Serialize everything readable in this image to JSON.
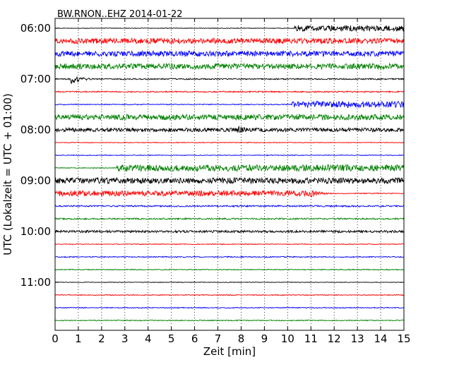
{
  "chart_data": {
    "type": "seismogram",
    "title": "BW.RNON..EHZ 2014-01-22",
    "xlabel": "Zeit  [min]",
    "ylabel": "UTC (Lokalzeit = UTC + 01:00)",
    "xlim": [
      0,
      15
    ],
    "x_ticks": [
      "0",
      "1",
      "2",
      "3",
      "4",
      "5",
      "6",
      "7",
      "8",
      "9",
      "10",
      "11",
      "12",
      "13",
      "14",
      "15"
    ],
    "y_tick_labels": [
      "06:00",
      "07:00",
      "08:00",
      "09:00",
      "10:00",
      "11:00"
    ],
    "vertical_grid": "dotted",
    "trace_colors": [
      "#000000",
      "#ff0000",
      "#0000ff",
      "#008000"
    ],
    "trace_interval_min": 15,
    "traces": [
      {
        "start": "06:00",
        "color": "#000000",
        "base_amplitude": 0.05,
        "burst": {
          "from_min": 10.3,
          "to_min": 15,
          "amplitude": 0.45
        }
      },
      {
        "start": "06:15",
        "color": "#ff0000",
        "base_amplitude": 0.42
      },
      {
        "start": "06:30",
        "color": "#0000ff",
        "base_amplitude": 0.42
      },
      {
        "start": "06:45",
        "color": "#008000",
        "base_amplitude": 0.42
      },
      {
        "start": "07:00",
        "color": "#000000",
        "base_amplitude": 0.1,
        "event": {
          "at_min": 0.7,
          "amplitude": 0.7,
          "decay_min": 0.5
        }
      },
      {
        "start": "07:15",
        "color": "#ff0000",
        "base_amplitude": 0.1
      },
      {
        "start": "07:30",
        "color": "#0000ff",
        "base_amplitude": 0.07,
        "burst": {
          "from_min": 10.2,
          "to_min": 15,
          "amplitude": 0.48
        }
      },
      {
        "start": "07:45",
        "color": "#008000",
        "base_amplitude": 0.42
      },
      {
        "start": "08:00",
        "color": "#000000",
        "base_amplitude": 0.3,
        "event": {
          "at_min": 7.9,
          "amplitude": 0.6,
          "decay_min": 0.6
        }
      },
      {
        "start": "08:15",
        "color": "#ff0000",
        "base_amplitude": 0.06
      },
      {
        "start": "08:30",
        "color": "#0000ff",
        "base_amplitude": 0.06
      },
      {
        "start": "08:45",
        "color": "#008000",
        "base_amplitude": 0.06,
        "burst": {
          "from_min": 2.65,
          "to_min": 15,
          "amplitude": 0.5
        }
      },
      {
        "start": "09:00",
        "color": "#000000",
        "base_amplitude": 0.45
      },
      {
        "start": "09:15",
        "color": "#ff0000",
        "base_amplitude": 0.42,
        "event": {
          "at_min": 11.0,
          "amplitude": 0.6,
          "decay_min": 0.5
        },
        "taper_from_min": 11.0
      },
      {
        "start": "09:30",
        "color": "#0000ff",
        "base_amplitude": 0.12
      },
      {
        "start": "09:45",
        "color": "#008000",
        "base_amplitude": 0.12
      },
      {
        "start": "10:00",
        "color": "#000000",
        "base_amplitude": 0.18
      },
      {
        "start": "10:15",
        "color": "#ff0000",
        "base_amplitude": 0.06
      },
      {
        "start": "10:30",
        "color": "#0000ff",
        "base_amplitude": 0.08
      },
      {
        "start": "10:45",
        "color": "#008000",
        "base_amplitude": 0.07
      },
      {
        "start": "11:00",
        "color": "#000000",
        "base_amplitude": 0.05
      },
      {
        "start": "11:15",
        "color": "#ff0000",
        "base_amplitude": 0.07
      },
      {
        "start": "11:30",
        "color": "#0000ff",
        "base_amplitude": 0.07
      },
      {
        "start": "11:45",
        "color": "#008000",
        "base_amplitude": 0.07
      }
    ]
  }
}
